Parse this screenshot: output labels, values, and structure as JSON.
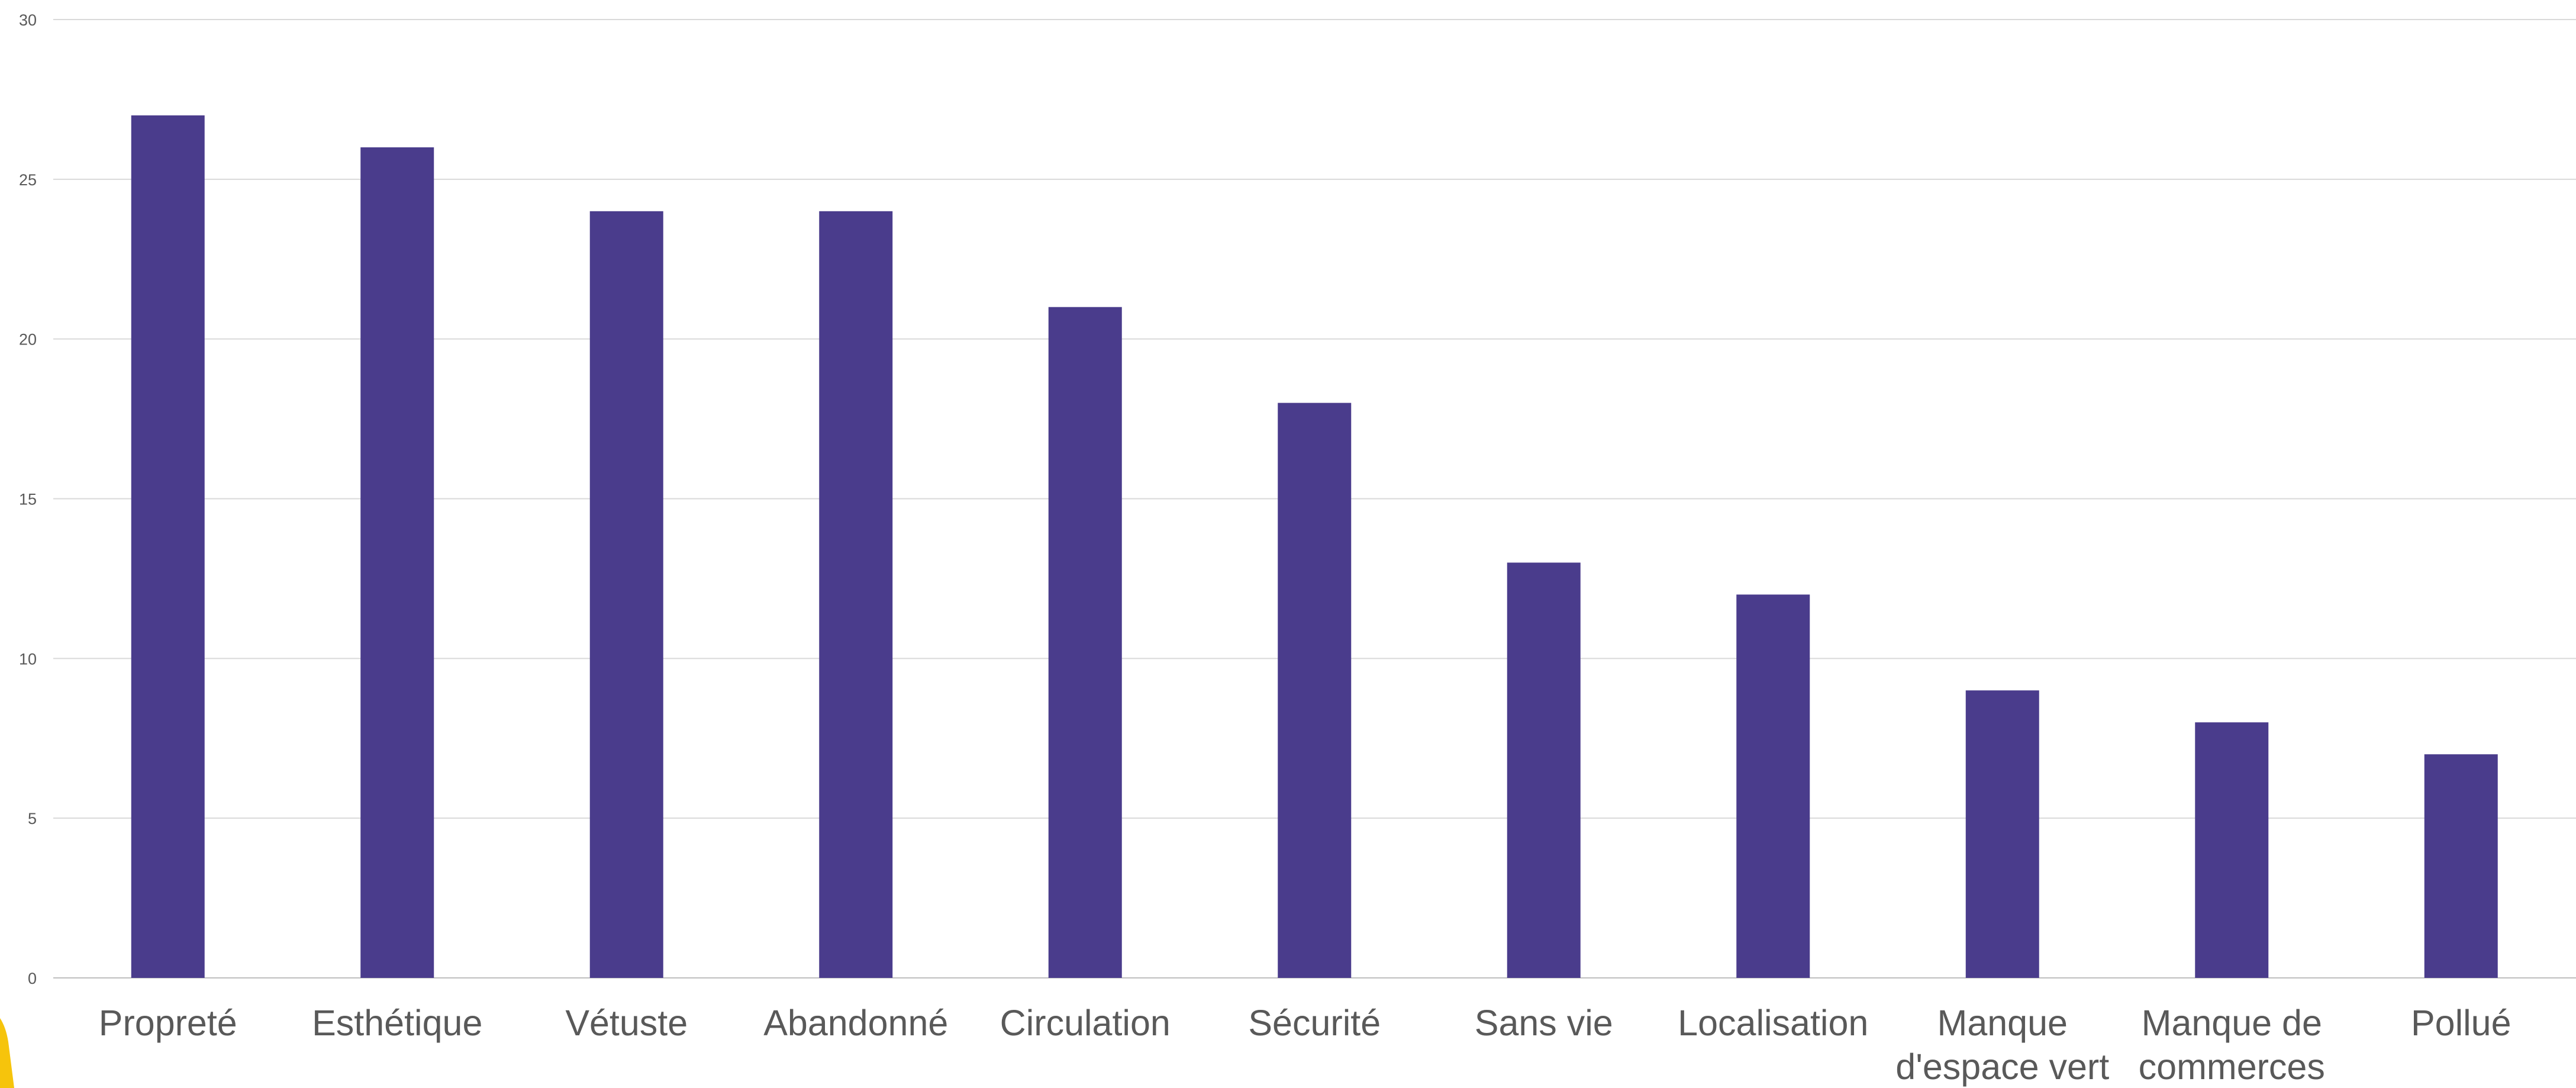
{
  "chart_data": {
    "type": "bar",
    "categories": [
      [
        "Propreté"
      ],
      [
        "Esthétique"
      ],
      [
        "Vétuste"
      ],
      [
        "Abandonné"
      ],
      [
        "Circulation"
      ],
      [
        "Sécurité"
      ],
      [
        "Sans vie"
      ],
      [
        "Localisation"
      ],
      [
        "Manque",
        "d'espace vert"
      ],
      [
        "Manque de",
        "commerces"
      ],
      [
        "Pollué"
      ]
    ],
    "values": [
      27,
      26,
      24,
      24,
      21,
      18,
      13,
      12,
      9,
      8,
      7
    ],
    "ylim": [
      0,
      30
    ],
    "yticks": [
      0,
      5,
      10,
      15,
      20,
      25,
      30
    ],
    "grid": true,
    "title": "",
    "xlabel": "",
    "ylabel": "",
    "colors": {
      "bar": "#4a3c8c",
      "grid": "#d9d9d9",
      "text": "#595959",
      "corner_accent": "#f6c40c"
    }
  }
}
